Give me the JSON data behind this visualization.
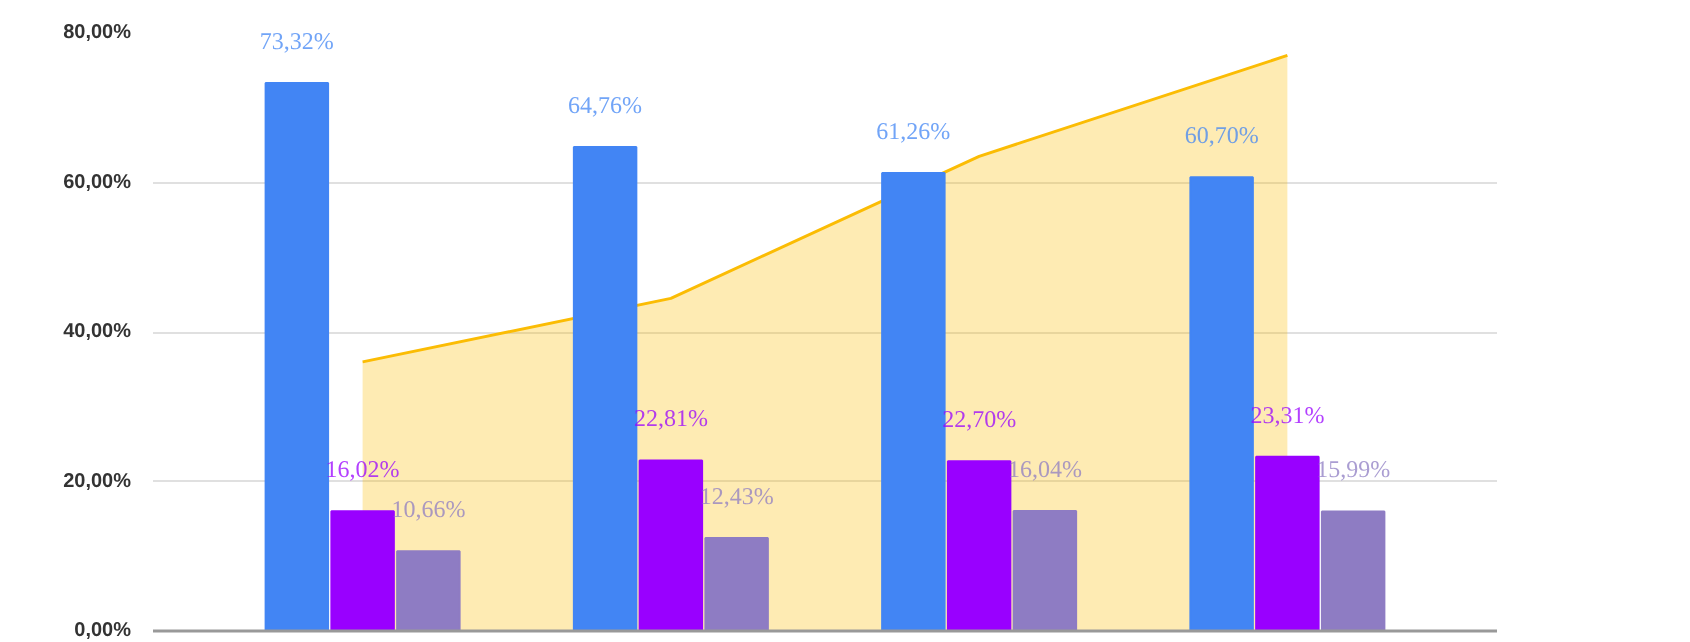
{
  "chart_data": {
    "type": "bar",
    "categories": [
      null,
      null,
      null,
      null
    ],
    "series": [
      {
        "type": "area",
        "color": "#fbbc04",
        "values": [
          36.0,
          44.5,
          63.5,
          77.0
        ]
      },
      {
        "color": "#4285f4",
        "values": [
          73.32,
          64.76,
          61.26,
          60.7
        ],
        "value_labels": [
          "73,32%",
          "64,76%",
          "61,26%",
          "60,70%"
        ]
      },
      {
        "color": "#9900ff",
        "values": [
          16.02,
          22.81,
          22.7,
          23.31
        ],
        "value_labels": [
          "16,02%",
          "22,81%",
          "22,70%",
          "23,31%"
        ]
      },
      {
        "color": "#8e7cc3",
        "values": [
          10.66,
          12.43,
          16.04,
          15.99
        ],
        "value_labels": [
          "10,66%",
          "12,43%",
          "16,04%",
          "15,99%"
        ]
      }
    ],
    "ylim": [
      0,
      80
    ],
    "yticks": [
      {
        "value": 0,
        "label": "0,00%"
      },
      {
        "value": 20,
        "label": "20,00%"
      },
      {
        "value": 40,
        "label": "40,00%"
      },
      {
        "value": 60,
        "label": "60,00%"
      },
      {
        "value": 80,
        "label": "80,00%"
      }
    ],
    "grid": "y",
    "tick_labels": "y"
  }
}
